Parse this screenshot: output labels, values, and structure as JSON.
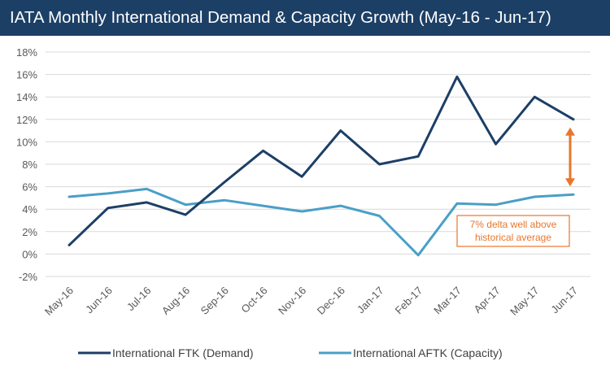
{
  "chart_data": {
    "type": "line",
    "title": "IATA Monthly International Demand & Capacity Growth (May-16 - Jun-17)",
    "categories": [
      "May-16",
      "Jun-16",
      "Jul-16",
      "Aug-16",
      "Sep-16",
      "Oct-16",
      "Nov-16",
      "Dec-16",
      "Jan-17",
      "Feb-17",
      "Mar-17",
      "Apr-17",
      "May-17",
      "Jun-17"
    ],
    "series": [
      {
        "name": "International FTK (Demand)",
        "color": "#1c3f66",
        "values": [
          0.8,
          4.1,
          4.6,
          3.5,
          6.4,
          9.2,
          6.9,
          11.0,
          8.0,
          8.7,
          15.8,
          9.8,
          14.0,
          12.0
        ]
      },
      {
        "name": "International AFTK (Capacity)",
        "color": "#4a9fc7",
        "values": [
          5.1,
          5.4,
          5.8,
          4.4,
          4.8,
          4.3,
          3.8,
          4.3,
          3.4,
          -0.1,
          4.5,
          4.4,
          5.1,
          5.3
        ]
      }
    ],
    "ylim": [
      -2,
      18
    ],
    "yticks": [
      -2,
      0,
      2,
      4,
      6,
      8,
      10,
      12,
      14,
      16,
      18
    ],
    "ytick_labels": [
      "-2%",
      "0%",
      "2%",
      "4%",
      "6%",
      "8%",
      "10%",
      "12%",
      "14%",
      "16%",
      "18%"
    ],
    "grid": true,
    "legend_position": "bottom",
    "annotation": {
      "lines": [
        "7% delta well above",
        "historical average"
      ],
      "color": "#e8762c",
      "arrow_category": "Jun-17",
      "arrow_from_value": 12.0,
      "arrow_to_value": 5.3
    }
  }
}
